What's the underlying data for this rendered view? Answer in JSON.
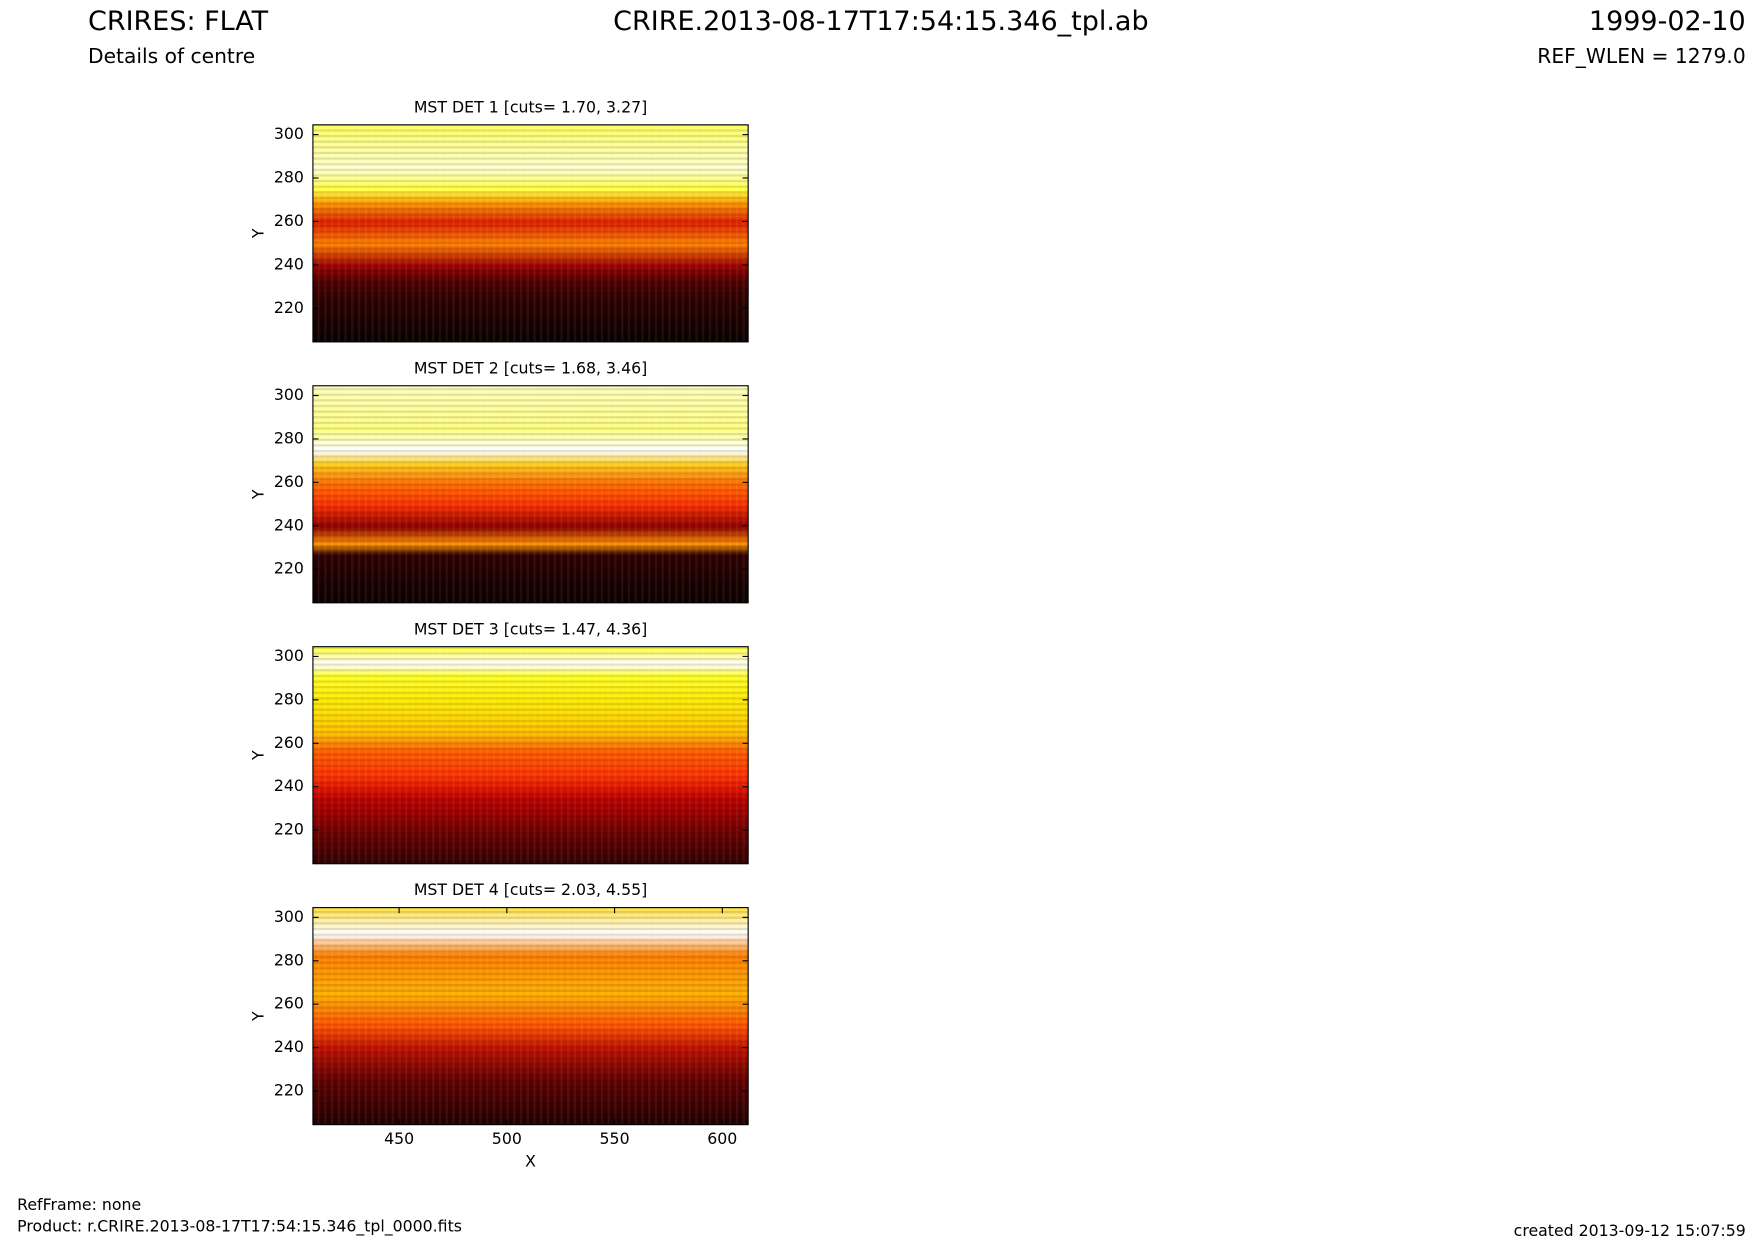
{
  "header": {
    "title": "CRIRES: FLAT",
    "subtitle": "Details of centre",
    "file": "CRIRE.2013-08-17T17:54:15.346_tpl.ab",
    "date": "1999-02-10",
    "ref_wlen": "REF_WLEN = 1279.0"
  },
  "chart_data": [
    {
      "type": "heatmap",
      "title": "MST DET 1 [cuts= 1.70, 3.27]",
      "y_label": "Y",
      "xlim": [
        410,
        612
      ],
      "ylim": [
        204.5,
        304.5
      ],
      "yticks": [
        220,
        240,
        260,
        280,
        300
      ]
    },
    {
      "type": "heatmap",
      "title": "MST DET 2 [cuts= 1.68, 3.46]",
      "y_label": "Y",
      "xlim": [
        410,
        612
      ],
      "ylim": [
        204.5,
        304.5
      ],
      "yticks": [
        220,
        240,
        260,
        280,
        300
      ]
    },
    {
      "type": "heatmap",
      "title": "MST DET 3 [cuts= 1.47, 4.36]",
      "y_label": "Y",
      "xlim": [
        410,
        612
      ],
      "ylim": [
        204.5,
        304.5
      ],
      "yticks": [
        220,
        240,
        260,
        280,
        300
      ]
    },
    {
      "type": "heatmap",
      "title": "MST DET 4 [cuts= 2.03, 4.55]",
      "y_label": "Y",
      "x_label": "X",
      "xlim": [
        410,
        612
      ],
      "ylim": [
        204.5,
        304.5
      ],
      "yticks": [
        220,
        240,
        260,
        280,
        300
      ],
      "xticks": [
        450,
        500,
        550,
        600
      ]
    }
  ],
  "footer": {
    "refframe": "RefFrame: none",
    "product": "Product: r.CRIRE.2013-08-17T17:54:15.346_tpl_0000.fits",
    "created": "created 2013-09-12 15:07:59"
  }
}
